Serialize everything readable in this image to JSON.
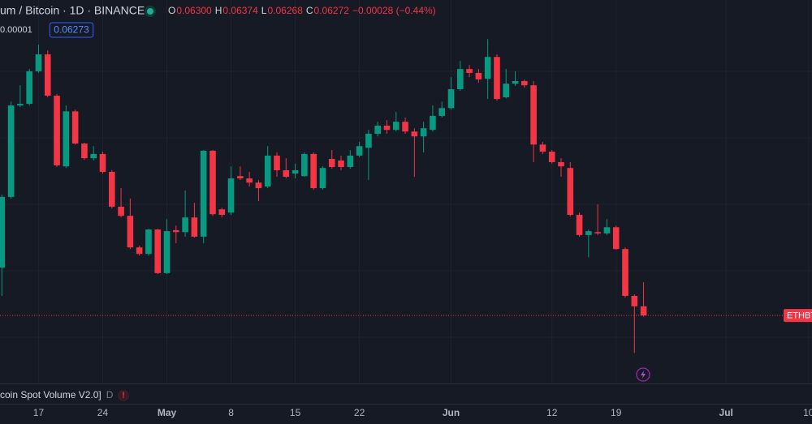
{
  "chart_data": {
    "type": "candlestick",
    "title": "um / Bitcoin · 1D · BINANCE",
    "ohlc_legend": [
      {
        "key": "O",
        "text": "0.06300"
      },
      {
        "key": "H",
        "text": "0.06374"
      },
      {
        "key": "L",
        "text": "0.06268"
      },
      {
        "key": "C",
        "text": "0.06272"
      }
    ],
    "change": "−0.00028 (−0.44%)",
    "scale_note": "0.00001",
    "price_badge": "0.06273",
    "last_price_label": "ETHBT",
    "indicator": "coin Spot Volume V2.0]",
    "indicator_flag": "D",
    "up_color": "#089981",
    "down_color": "#f23645",
    "ylim": [
      0.06063,
      0.07241
    ],
    "categories": [
      null,
      null,
      null,
      null,
      "17",
      null,
      null,
      null,
      null,
      null,
      null,
      "24",
      null,
      null,
      null,
      null,
      null,
      null,
      "May",
      null,
      null,
      null,
      null,
      null,
      null,
      "8",
      null,
      null,
      null,
      null,
      null,
      null,
      "15",
      null,
      null,
      null,
      null,
      null,
      null,
      "22",
      null,
      null,
      null,
      null,
      null,
      null,
      null,
      null,
      null,
      "Jun",
      null,
      null,
      null,
      null,
      null,
      null,
      null,
      null,
      null,
      null,
      "12",
      null,
      null,
      null,
      null,
      null,
      null,
      "19",
      null,
      null,
      null,
      null,
      null,
      null,
      null,
      null,
      null,
      null,
      null,
      "Jul",
      null,
      null,
      null,
      null,
      null,
      null,
      null,
      null,
      "10"
    ],
    "open": [
      0.06419,
      0.06636,
      0.06917,
      0.06922,
      0.07022,
      0.07074,
      0.06947,
      0.0673,
      0.06899,
      0.068,
      0.06755,
      0.06768,
      0.06713,
      0.06606,
      0.06578,
      0.06481,
      0.06461,
      0.06536,
      0.06402,
      0.06534,
      0.06528,
      0.06573,
      0.06514,
      0.06778,
      0.06598,
      0.06588,
      0.067,
      0.06693,
      0.0668,
      0.06668,
      0.06763,
      0.06718,
      0.06708,
      0.067,
      0.06768,
      0.06663,
      0.06753,
      0.06748,
      0.06728,
      0.06763,
      0.06787,
      0.0683,
      0.06855,
      0.06842,
      0.06867,
      0.06837,
      0.06822,
      0.06842,
      0.06885,
      0.06909,
      0.06967,
      0.07029,
      0.07017,
      0.06999,
      0.07066,
      0.06942,
      0.06984,
      0.06992,
      0.06979,
      0.06797,
      0.06775,
      0.06743,
      0.06725,
      0.06581,
      0.06519,
      0.06528,
      0.06524,
      0.06543,
      0.06476,
      0.06332,
      0.063,
      null,
      null,
      null,
      null,
      null,
      null,
      null,
      null,
      null,
      null,
      null,
      null,
      null,
      null,
      null,
      null,
      null,
      null
    ],
    "high": [
      0.06643,
      0.06929,
      0.06979,
      0.07029,
      0.07104,
      0.07086,
      0.06952,
      0.06917,
      0.06904,
      0.06802,
      0.06792,
      0.06775,
      0.06718,
      0.06663,
      0.06631,
      0.06486,
      0.06538,
      0.06538,
      0.06568,
      0.06548,
      0.06656,
      0.06618,
      0.0678,
      0.0678,
      0.06603,
      0.0673,
      0.0673,
      0.06713,
      0.06688,
      0.06792,
      0.06773,
      0.06755,
      0.06738,
      0.06773,
      0.06773,
      0.0673,
      0.0678,
      0.06763,
      0.0678,
      0.06805,
      0.06842,
      0.06867,
      0.06872,
      0.06897,
      0.0688,
      0.06847,
      0.06867,
      0.06917,
      0.06929,
      0.07004,
      0.07054,
      0.07041,
      0.07029,
      0.07121,
      0.07074,
      0.07029,
      0.07022,
      0.06997,
      0.06992,
      0.06805,
      0.0678,
      0.06755,
      0.06743,
      0.06588,
      0.06536,
      0.06613,
      0.06568,
      0.06548,
      0.06481,
      0.06337,
      0.06374,
      null,
      null,
      null,
      null,
      null,
      null,
      null,
      null,
      null,
      null,
      null,
      null,
      null,
      null,
      null,
      null,
      null,
      null
    ],
    "low": [
      0.06332,
      0.06631,
      0.06912,
      0.06917,
      0.07017,
      0.06942,
      0.06728,
      0.06725,
      0.06797,
      0.0675,
      0.06748,
      0.06708,
      0.06601,
      0.06573,
      0.06476,
      0.06456,
      0.06456,
      0.06399,
      0.06399,
      0.06494,
      0.06514,
      0.06511,
      0.06494,
      0.06578,
      0.06573,
      0.06581,
      0.06688,
      0.06668,
      0.06623,
      0.06663,
      0.06698,
      0.06693,
      0.06693,
      0.06698,
      0.06658,
      0.06658,
      0.06723,
      0.06718,
      0.06723,
      0.06758,
      0.06688,
      0.06822,
      0.0683,
      0.06837,
      0.0683,
      0.06698,
      0.06773,
      0.06837,
      0.0688,
      0.06904,
      0.06962,
      0.07004,
      0.06987,
      0.06937,
      0.06932,
      0.06939,
      0.06977,
      0.06972,
      0.06743,
      0.06768,
      0.06738,
      0.06698,
      0.06576,
      0.06514,
      0.06451,
      0.06519,
      0.06519,
      0.06474,
      0.06327,
      0.06157,
      0.06268,
      null,
      null,
      null,
      null,
      null,
      null,
      null,
      null,
      null,
      null,
      null,
      null,
      null,
      null,
      null,
      null,
      null,
      null
    ],
    "close": [
      0.06636,
      0.06917,
      0.06922,
      0.07022,
      0.07074,
      0.06947,
      0.06733,
      0.06899,
      0.068,
      0.06755,
      0.06768,
      0.06713,
      0.06606,
      0.06578,
      0.06481,
      0.06461,
      0.06536,
      0.06402,
      0.06531,
      0.06528,
      0.06573,
      0.06514,
      0.06778,
      0.06583,
      0.06581,
      0.06693,
      0.06693,
      0.0668,
      0.06663,
      0.06763,
      0.06718,
      0.06698,
      0.06718,
      0.06768,
      0.06663,
      0.06725,
      0.06728,
      0.06728,
      0.06763,
      0.06792,
      0.0683,
      0.06855,
      0.06842,
      0.06867,
      0.06837,
      0.06822,
      0.06847,
      0.06885,
      0.06909,
      0.06967,
      0.07029,
      0.07017,
      0.06997,
      0.07066,
      0.06937,
      0.06984,
      0.06992,
      0.06979,
      0.06797,
      0.06775,
      0.06743,
      0.0673,
      0.06581,
      0.06519,
      0.06531,
      0.06524,
      0.06543,
      0.06476,
      0.06332,
      0.063,
      0.06272,
      null,
      null,
      null,
      null,
      null,
      null,
      null,
      null,
      null,
      null,
      null,
      null,
      null,
      null,
      null,
      null,
      null,
      null
    ]
  }
}
